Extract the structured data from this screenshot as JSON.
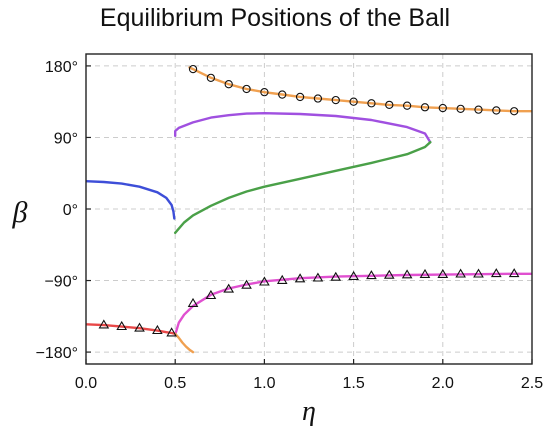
{
  "chart_data": {
    "type": "line",
    "title": "Equilibrium Positions of the Ball",
    "xlabel": "η",
    "ylabel": "β",
    "xlim": [
      0,
      2.5
    ],
    "ylim": [
      -195,
      195
    ],
    "xticks": [
      "0.0",
      "0.5",
      "1.0",
      "1.5",
      "2.0",
      "2.5"
    ],
    "yticks": [
      "180°",
      "90°",
      "0°",
      "−90°",
      "−180°"
    ],
    "grid": true,
    "series": [
      {
        "color": "#f0a050",
        "marker": "circle",
        "x": [
          0.58,
          0.6,
          0.7,
          0.8,
          0.9,
          1.0,
          1.1,
          1.2,
          1.3,
          1.4,
          1.5,
          1.6,
          1.7,
          1.8,
          1.9,
          2.0,
          2.1,
          2.2,
          2.3,
          2.4,
          2.5
        ],
        "y": [
          178,
          176,
          165,
          157,
          151,
          147,
          144,
          141,
          139,
          137,
          135,
          133,
          131,
          130,
          128,
          127,
          126,
          125,
          124,
          123,
          123
        ],
        "marker_x": [
          0.6,
          0.7,
          0.8,
          0.9,
          1.0,
          1.1,
          1.2,
          1.3,
          1.4,
          1.5,
          1.6,
          1.7,
          1.8,
          1.9,
          2.0,
          2.1,
          2.2,
          2.3,
          2.4
        ],
        "marker_y": [
          176,
          165,
          157,
          151,
          147,
          144,
          141,
          139,
          137,
          135,
          133,
          131,
          130,
          128,
          127,
          126,
          125,
          124,
          123
        ]
      },
      {
        "color": "#a050e0",
        "x": [
          0.5,
          0.5,
          0.52,
          0.6,
          0.7,
          0.8,
          0.9,
          1.0,
          1.2,
          1.4,
          1.6,
          1.8,
          1.9,
          1.93
        ],
        "y": [
          92,
          98,
          102,
          109,
          115,
          118,
          120,
          120.5,
          119.5,
          117,
          112,
          103,
          95,
          84
        ]
      },
      {
        "color": "#4aa048",
        "x": [
          0.5,
          0.55,
          0.6,
          0.7,
          0.8,
          0.9,
          1.0,
          1.2,
          1.4,
          1.6,
          1.8,
          1.9,
          1.93
        ],
        "y": [
          -30,
          -17,
          -8,
          4,
          14,
          22,
          28,
          38,
          48,
          58,
          69,
          78,
          84
        ]
      },
      {
        "color": "#3d4ed8",
        "x": [
          0.0,
          0.1,
          0.2,
          0.3,
          0.4,
          0.45,
          0.48,
          0.49,
          0.495
        ],
        "y": [
          35,
          34,
          32,
          28,
          21,
          14,
          5,
          -3,
          -12
        ]
      },
      {
        "color": "#e050d0",
        "marker": "triangle",
        "x": [
          0.5,
          0.52,
          0.55,
          0.6,
          0.7,
          0.8,
          0.9,
          1.0,
          1.2,
          1.4,
          1.6,
          1.8,
          2.0,
          2.2,
          2.4,
          2.5
        ],
        "y": [
          -158,
          -143,
          -133,
          -122,
          -108,
          -100,
          -95,
          -91,
          -87,
          -85,
          -84,
          -83,
          -82.5,
          -82,
          -81.5,
          -81.5
        ],
        "marker_x": [
          0.6,
          0.7,
          0.8,
          0.9,
          1.0,
          1.1,
          1.2,
          1.3,
          1.4,
          1.5,
          1.6,
          1.7,
          1.8,
          1.9,
          2.0,
          2.1,
          2.2,
          2.3,
          2.4
        ],
        "marker_y": [
          -119,
          -109,
          -101,
          -96,
          -92,
          -90,
          -88,
          -87,
          -86,
          -85,
          -84,
          -83.5,
          -83,
          -82.5,
          -82.5,
          -82,
          -82,
          -81.5,
          -81.5
        ]
      },
      {
        "color": "#e84848",
        "marker": "triangle",
        "x": [
          0.0,
          0.1,
          0.2,
          0.3,
          0.4,
          0.45,
          0.48,
          0.5
        ],
        "y": [
          -145,
          -146,
          -148,
          -150,
          -153,
          -155,
          -156,
          -157
        ],
        "marker_x": [
          0.1,
          0.2,
          0.3,
          0.4,
          0.48
        ],
        "marker_y": [
          -146,
          -148,
          -150,
          -153,
          -156
        ]
      },
      {
        "color": "#f0a050",
        "x": [
          0.5,
          0.52,
          0.54,
          0.56,
          0.58,
          0.6
        ],
        "y": [
          -157,
          -162,
          -168,
          -173,
          -177,
          -180
        ]
      }
    ]
  }
}
